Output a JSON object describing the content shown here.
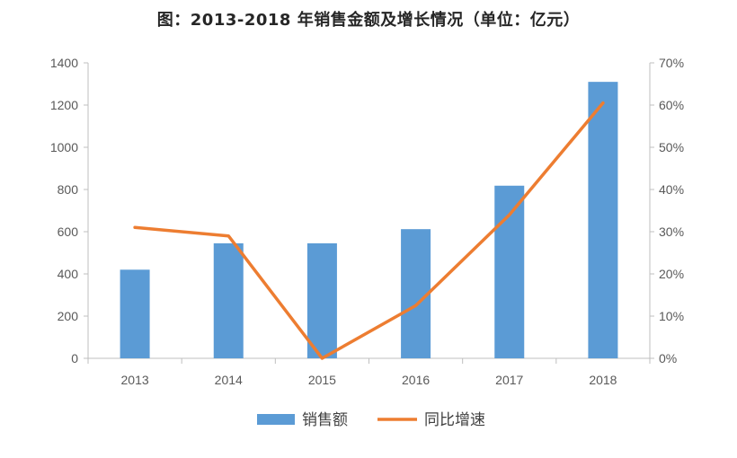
{
  "chart_data": {
    "type": "bar",
    "title": "图：2013-2018 年销售金额及增长情况（单位：亿元）",
    "categories": [
      "2013",
      "2014",
      "2015",
      "2016",
      "2017",
      "2018"
    ],
    "series": [
      {
        "name": "销售额",
        "type": "bar",
        "axis": "left",
        "color": "#5b9bd5",
        "values": [
          420,
          545,
          545,
          612,
          818,
          1310
        ]
      },
      {
        "name": "同比增速",
        "type": "line",
        "axis": "right",
        "color": "#ed7d31",
        "values": [
          0.31,
          0.29,
          0.0,
          0.125,
          0.34,
          0.605
        ]
      }
    ],
    "y_left": {
      "min": 0,
      "max": 1400,
      "ticks": [
        0,
        200,
        400,
        600,
        800,
        1000,
        1200,
        1400
      ],
      "tick_labels": [
        "0",
        "200",
        "400",
        "600",
        "800",
        "1000",
        "1200",
        "1400"
      ]
    },
    "y_right": {
      "min": 0,
      "max": 0.7,
      "ticks": [
        0,
        0.1,
        0.2,
        0.3,
        0.4,
        0.5,
        0.6,
        0.7
      ],
      "tick_labels": [
        "0%",
        "10%",
        "20%",
        "30%",
        "40%",
        "50%",
        "60%",
        "70%"
      ]
    },
    "grid": false,
    "legend_position": "bottom"
  }
}
